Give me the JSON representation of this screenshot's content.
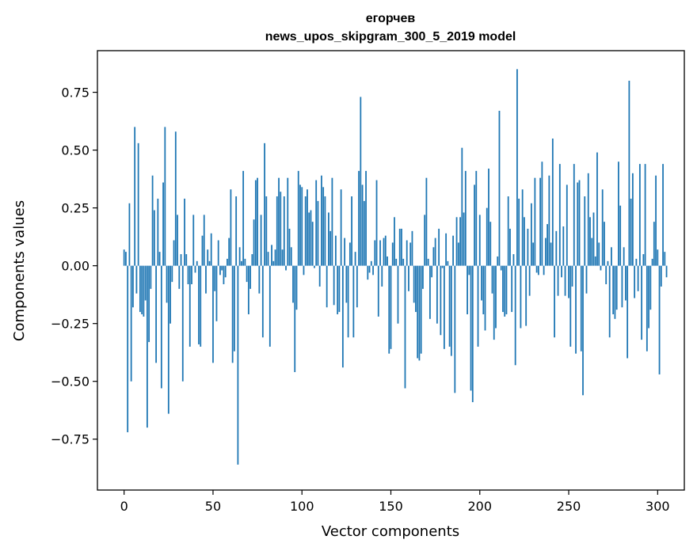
{
  "chart_data": {
    "type": "bar",
    "title": "егорчев",
    "subtitle": "news_upos_skipgram_300_5_2019 model",
    "xlabel": "Vector components",
    "ylabel": "Components values",
    "xlim": [
      -15,
      315
    ],
    "ylim": [
      -0.97,
      0.93
    ],
    "xticks": [
      0,
      50,
      100,
      150,
      200,
      250,
      300
    ],
    "yticks": [
      -0.75,
      -0.5,
      -0.25,
      0.0,
      0.25,
      0.5,
      0.75
    ],
    "xtick_labels": [
      "0",
      "50",
      "100",
      "150",
      "200",
      "250",
      "300"
    ],
    "ytick_labels": [
      "−0.75",
      "−0.50",
      "−0.25",
      "0.00",
      "0.25",
      "0.50",
      "0.75"
    ],
    "bar_color": "#1f77b4",
    "grid": false,
    "x_start": 0,
    "values": [
      0.07,
      0.06,
      -0.72,
      0.27,
      -0.5,
      -0.18,
      0.6,
      -0.12,
      0.53,
      -0.2,
      -0.21,
      -0.22,
      -0.15,
      -0.7,
      -0.33,
      -0.1,
      0.39,
      0.24,
      -0.42,
      0.29,
      0.06,
      -0.53,
      0.36,
      0.6,
      -0.16,
      -0.64,
      -0.25,
      -0.07,
      0.11,
      0.58,
      0.22,
      -0.1,
      0.05,
      -0.5,
      0.29,
      0.05,
      -0.08,
      -0.35,
      -0.08,
      0.22,
      -0.03,
      0.02,
      -0.34,
      -0.35,
      0.13,
      0.22,
      -0.12,
      0.07,
      0.02,
      0.14,
      -0.42,
      -0.11,
      -0.24,
      0.11,
      -0.04,
      -0.02,
      -0.08,
      -0.05,
      0.03,
      0.12,
      0.33,
      -0.42,
      -0.37,
      0.3,
      -0.86,
      0.08,
      0.02,
      0.41,
      0.03,
      -0.07,
      -0.21,
      -0.1,
      0.05,
      0.2,
      0.37,
      0.38,
      -0.12,
      0.22,
      -0.31,
      0.53,
      0.3,
      0.06,
      -0.35,
      0.09,
      0.02,
      0.07,
      0.3,
      0.38,
      0.32,
      0.07,
      0.3,
      -0.02,
      0.38,
      0.16,
      0.08,
      -0.16,
      -0.46,
      -0.19,
      0.41,
      0.35,
      0.34,
      -0.04,
      0.3,
      0.33,
      0.23,
      0.24,
      0.19,
      -0.01,
      0.37,
      0.28,
      -0.09,
      0.39,
      0.34,
      0.3,
      -0.18,
      0.23,
      0.15,
      0.38,
      -0.17,
      0.13,
      -0.21,
      -0.2,
      0.33,
      -0.44,
      0.12,
      -0.16,
      -0.31,
      0.1,
      0.3,
      -0.31,
      0.06,
      -0.18,
      0.41,
      0.73,
      0.35,
      0.28,
      0.41,
      -0.06,
      -0.03,
      0.02,
      -0.04,
      0.11,
      0.37,
      -0.22,
      0.11,
      -0.09,
      0.12,
      0.13,
      0.04,
      -0.38,
      -0.36,
      0.1,
      0.21,
      0.03,
      -0.25,
      0.16,
      0.16,
      0.03,
      -0.53,
      0.11,
      -0.11,
      0.1,
      0.15,
      -0.16,
      -0.2,
      -0.4,
      -0.41,
      -0.38,
      -0.1,
      0.22,
      0.38,
      0.03,
      -0.23,
      -0.05,
      0.08,
      0.12,
      -0.25,
      0.16,
      -0.3,
      -0.01,
      -0.36,
      0.14,
      0.02,
      -0.35,
      -0.39,
      0.13,
      -0.55,
      0.21,
      0.1,
      0.21,
      0.51,
      0.23,
      0.41,
      -0.21,
      -0.04,
      -0.54,
      -0.59,
      0.35,
      0.41,
      -0.35,
      0.22,
      -0.15,
      -0.21,
      -0.28,
      0.25,
      0.42,
      0.19,
      -0.12,
      -0.32,
      -0.27,
      0.04,
      0.67,
      -0.02,
      -0.2,
      -0.22,
      -0.21,
      0.3,
      0.16,
      -0.2,
      0.05,
      -0.43,
      0.85,
      0.29,
      -0.27,
      0.33,
      0.21,
      -0.26,
      0.16,
      -0.13,
      0.27,
      0.1,
      0.38,
      -0.03,
      -0.04,
      0.38,
      0.45,
      -0.04,
      0.12,
      0.18,
      0.39,
      0.1,
      0.55,
      -0.31,
      0.15,
      -0.13,
      0.44,
      -0.05,
      0.17,
      -0.13,
      0.35,
      -0.14,
      -0.35,
      -0.09,
      0.44,
      -0.38,
      0.36,
      0.37,
      -0.37,
      -0.56,
      0.3,
      -0.12,
      0.4,
      0.21,
      0.12,
      0.23,
      0.04,
      0.49,
      0.1,
      -0.02,
      0.33,
      0.19,
      -0.08,
      0.02,
      -0.31,
      0.08,
      -0.21,
      -0.23,
      -0.19,
      0.45,
      0.26,
      -0.18,
      0.08,
      -0.15,
      -0.4,
      0.8,
      0.29,
      0.4,
      -0.14,
      0.03,
      -0.11,
      0.44,
      -0.32,
      0.05,
      0.44,
      -0.37,
      -0.27,
      -0.19,
      0.03,
      0.19,
      0.39,
      0.07,
      -0.47,
      -0.09,
      0.44,
      0.06,
      -0.05
    ]
  }
}
